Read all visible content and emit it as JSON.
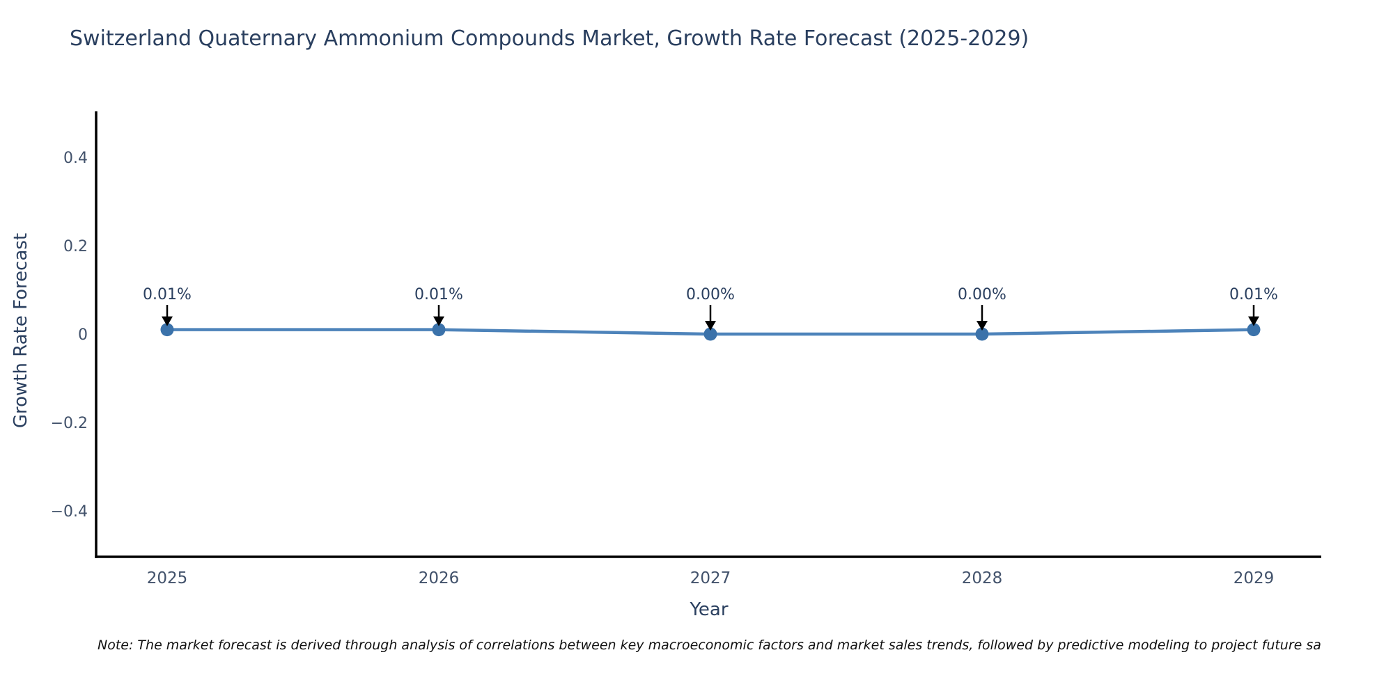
{
  "title": "Switzerland Quaternary Ammonium Compounds Market, Growth Rate Forecast (2025-2029)",
  "note": "Note: The market forecast is derived through analysis of correlations between key macroeconomic factors and market sales trends, followed by predictive modeling to project future sa",
  "chart_data": {
    "type": "line",
    "title": "Switzerland Quaternary Ammonium Compounds Market, Growth Rate Forecast (2025-2029)",
    "xlabel": "Year",
    "ylabel": "Growth Rate Forecast",
    "x": [
      2025,
      2026,
      2027,
      2028,
      2029
    ],
    "values": [
      0.01,
      0.01,
      0.0,
      0.0,
      0.01
    ],
    "point_labels": [
      "0.01%",
      "0.01%",
      "0.00%",
      "0.00%",
      "0.01%"
    ],
    "xticks": [
      "2025",
      "2026",
      "2027",
      "2028",
      "2029"
    ],
    "yticks": [
      {
        "value": 0.4,
        "label": "0.4"
      },
      {
        "value": 0.2,
        "label": "0.2"
      },
      {
        "value": 0,
        "label": "0"
      },
      {
        "value": -0.2,
        "label": "−0.2"
      },
      {
        "value": -0.4,
        "label": "−0.4"
      }
    ],
    "ylim": [
      -0.5,
      0.5
    ],
    "grid": false,
    "legend": "none",
    "colors": {
      "line": "#4d83ba",
      "marker": "#3b72aa",
      "axis": "#000000",
      "annotation_arrow": "#000000",
      "text": "#2a3f5f"
    }
  }
}
